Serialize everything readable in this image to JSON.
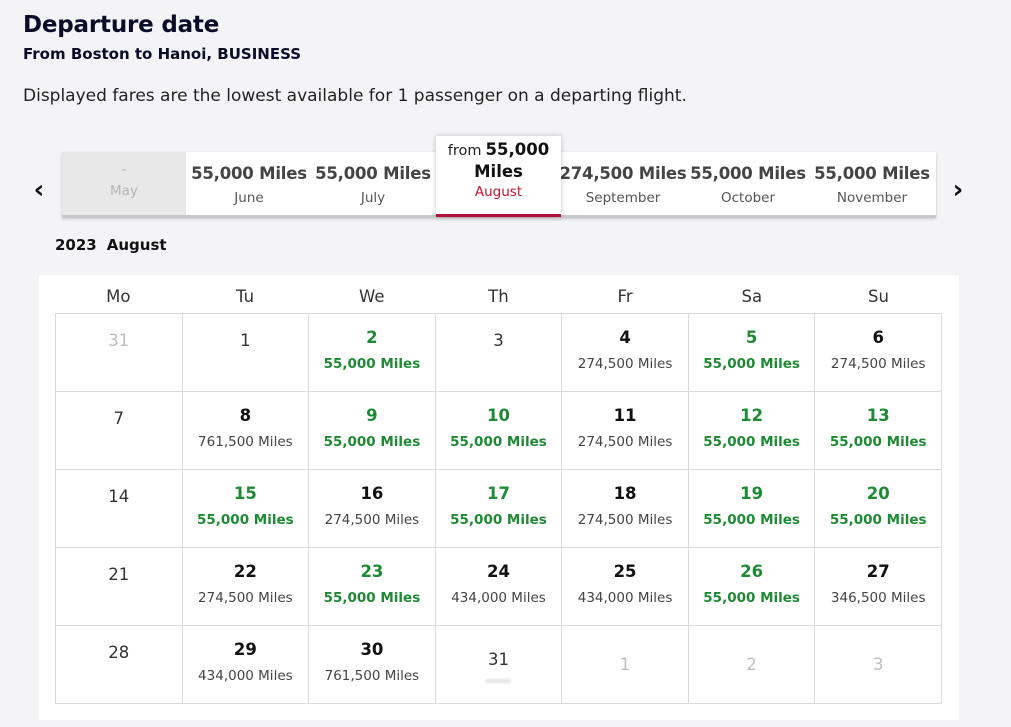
{
  "header": {
    "title": "Departure date",
    "route": "From Boston to Hanoi, BUSINESS",
    "note": "Displayed fares are the lowest available for 1 passenger on a departing flight."
  },
  "months": {
    "items": [
      {
        "price": "-",
        "name": "May",
        "state": "disabled"
      },
      {
        "price": "55,000 Miles",
        "name": "June",
        "state": "normal"
      },
      {
        "price": "55,000 Miles",
        "name": "July",
        "state": "normal"
      },
      {
        "price": "274,500 Miles",
        "name": "September",
        "state": "normal"
      },
      {
        "price": "55,000 Miles",
        "name": "October",
        "state": "normal"
      },
      {
        "price": "55,000 Miles",
        "name": "November",
        "state": "normal"
      }
    ],
    "selected": {
      "from": "from",
      "amount": "55,000",
      "unit": "Miles",
      "name": "August"
    },
    "prev_icon": "chevron-left-icon",
    "next_icon": "chevron-right-icon"
  },
  "calendar": {
    "year": "2023",
    "month": "August",
    "weekdays": [
      "Mo",
      "Tu",
      "We",
      "Th",
      "Fr",
      "Sa",
      "Su"
    ],
    "cheap_color": "#1f8a34",
    "cells": [
      {
        "day": "31",
        "fare": "",
        "type": "outside"
      },
      {
        "day": "1",
        "fare": "",
        "type": "plain"
      },
      {
        "day": "2",
        "fare": "55,000 Miles",
        "type": "cheap"
      },
      {
        "day": "3",
        "fare": "",
        "type": "plain"
      },
      {
        "day": "4",
        "fare": "274,500 Miles",
        "type": "fare"
      },
      {
        "day": "5",
        "fare": "55,000 Miles",
        "type": "cheap"
      },
      {
        "day": "6",
        "fare": "274,500 Miles",
        "type": "fare"
      },
      {
        "day": "7",
        "fare": "",
        "type": "plain"
      },
      {
        "day": "8",
        "fare": "761,500 Miles",
        "type": "fare"
      },
      {
        "day": "9",
        "fare": "55,000 Miles",
        "type": "cheap"
      },
      {
        "day": "10",
        "fare": "55,000 Miles",
        "type": "cheap"
      },
      {
        "day": "11",
        "fare": "274,500 Miles",
        "type": "fare"
      },
      {
        "day": "12",
        "fare": "55,000 Miles",
        "type": "cheap"
      },
      {
        "day": "13",
        "fare": "55,000 Miles",
        "type": "cheap"
      },
      {
        "day": "14",
        "fare": "",
        "type": "plain"
      },
      {
        "day": "15",
        "fare": "55,000 Miles",
        "type": "cheap"
      },
      {
        "day": "16",
        "fare": "274,500 Miles",
        "type": "fare"
      },
      {
        "day": "17",
        "fare": "55,000 Miles",
        "type": "cheap"
      },
      {
        "day": "18",
        "fare": "274,500 Miles",
        "type": "fare"
      },
      {
        "day": "19",
        "fare": "55,000 Miles",
        "type": "cheap"
      },
      {
        "day": "20",
        "fare": "55,000 Miles",
        "type": "cheap"
      },
      {
        "day": "21",
        "fare": "",
        "type": "plain"
      },
      {
        "day": "22",
        "fare": "274,500 Miles",
        "type": "fare"
      },
      {
        "day": "23",
        "fare": "55,000 Miles",
        "type": "cheap"
      },
      {
        "day": "24",
        "fare": "434,000 Miles",
        "type": "fare"
      },
      {
        "day": "25",
        "fare": "434,000 Miles",
        "type": "fare"
      },
      {
        "day": "26",
        "fare": "55,000 Miles",
        "type": "cheap"
      },
      {
        "day": "27",
        "fare": "346,500 Miles",
        "type": "fare"
      },
      {
        "day": "28",
        "fare": "",
        "type": "plain"
      },
      {
        "day": "29",
        "fare": "434,000 Miles",
        "type": "fare"
      },
      {
        "day": "30",
        "fare": "761,500 Miles",
        "type": "fare"
      },
      {
        "day": "31",
        "fare": "",
        "type": "nofare"
      },
      {
        "day": "1",
        "fare": "",
        "type": "outside-tail"
      },
      {
        "day": "2",
        "fare": "",
        "type": "outside-tail"
      },
      {
        "day": "3",
        "fare": "",
        "type": "outside-tail"
      }
    ]
  }
}
